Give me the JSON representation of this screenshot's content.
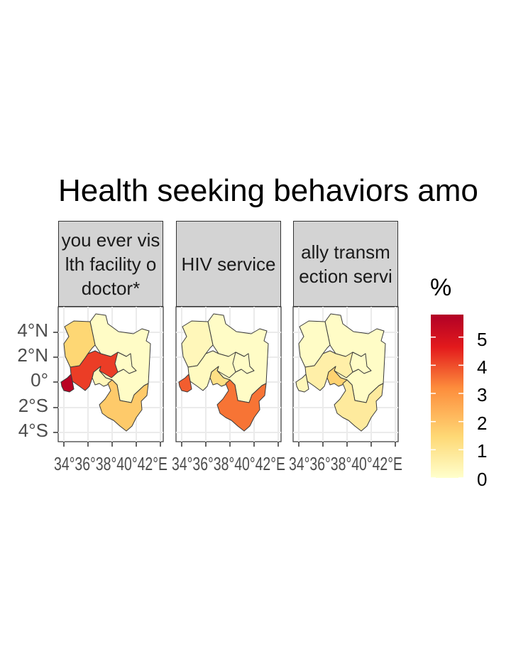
{
  "title": "Health seeking behaviors amo",
  "facets": [
    {
      "label": "you ever vis\nlth facility o\ndoctor*",
      "shade": {
        "north_west": 1.5,
        "south_west": 4.2,
        "lake_region": 5.6,
        "central": 0.3,
        "south_east": 1.8,
        "north_east": 0.1,
        "east": 0.1
      }
    },
    {
      "label": "HIV service",
      "shade": {
        "north_west": 0.3,
        "south_west": 0.2,
        "lake_region": 3.8,
        "central": 1.2,
        "south_east": 3.5,
        "north_east": 0.1,
        "east": 0.1
      }
    },
    {
      "label": "ally transm\nection servi",
      "shade": {
        "north_west": 0.1,
        "south_west": 0.6,
        "lake_region": 0.3,
        "central": 1.6,
        "south_east": 0.8,
        "north_east": 0.1,
        "east": 0.1
      }
    }
  ],
  "axes": {
    "y_ticks": [
      "4°N",
      "2°N",
      "0°",
      "2°S",
      "4°S"
    ],
    "x_tick_text": "34°36°38°40°42°E"
  },
  "legend": {
    "title": "%",
    "labels": [
      "5",
      "4",
      "3",
      "2",
      "1",
      "0"
    ],
    "range": [
      0,
      5.8
    ],
    "colors": [
      "#ffffcc",
      "#fed976",
      "#fd8d3c",
      "#e31a1c",
      "#b10026"
    ]
  }
}
